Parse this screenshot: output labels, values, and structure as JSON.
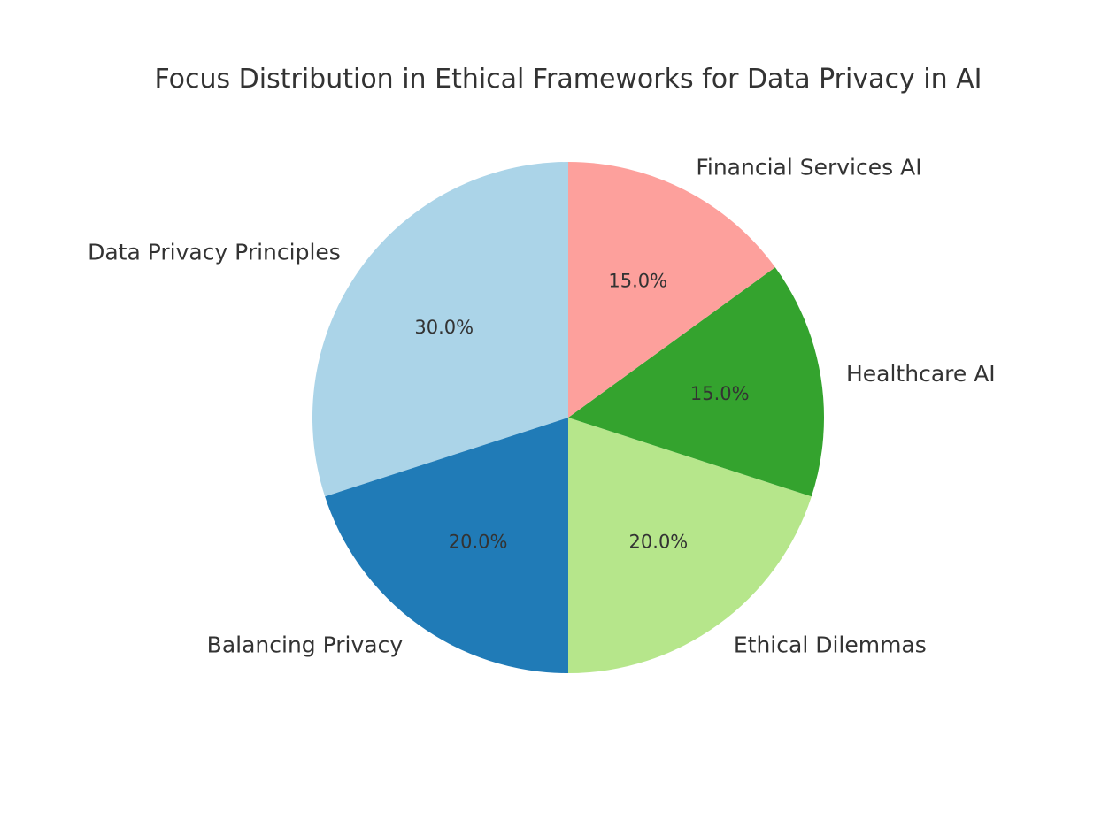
{
  "chart_data": {
    "type": "pie",
    "title": "Focus Distribution in Ethical Frameworks for Data Privacy in AI",
    "start_angle_deg": 90,
    "direction": "counterclockwise",
    "slices": [
      {
        "label": "Data Privacy Principles",
        "value": 30.0,
        "pct_text": "30.0%",
        "color": "#abd4e8"
      },
      {
        "label": "Balancing Privacy",
        "value": 20.0,
        "pct_text": "20.0%",
        "color": "#207bb7"
      },
      {
        "label": "Ethical Dilemmas",
        "value": 20.0,
        "pct_text": "20.0%",
        "color": "#b6e68b"
      },
      {
        "label": "Healthcare AI",
        "value": 15.0,
        "pct_text": "15.0%",
        "color": "#34a32e"
      },
      {
        "label": "Financial Services AI",
        "value": 15.0,
        "pct_text": "15.0%",
        "color": "#fda09c"
      }
    ]
  }
}
